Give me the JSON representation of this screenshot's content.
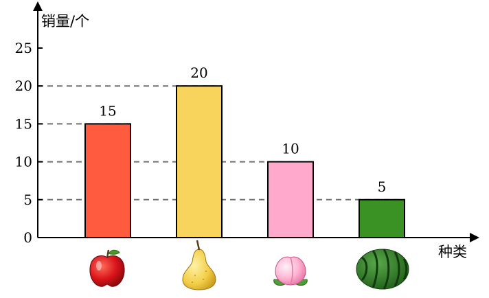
{
  "chart_data": {
    "type": "bar",
    "title": "",
    "ylabel": "销量/个",
    "xlabel": "种类",
    "categories": [
      "apple",
      "pear",
      "peach",
      "watermelon"
    ],
    "category_icons": [
      "apple-icon",
      "pear-icon",
      "peach-icon",
      "watermelon-icon"
    ],
    "values": [
      15,
      20,
      10,
      5
    ],
    "data_labels": [
      "15",
      "20",
      "10",
      "5"
    ],
    "colors": [
      "#FF5B3F",
      "#F9D45C",
      "#FFA9CC",
      "#3A9124"
    ],
    "ylim": [
      0,
      25
    ],
    "yticks": [
      0,
      5,
      10,
      15,
      20,
      25
    ],
    "ytick_labels": [
      "0",
      "5",
      "10",
      "15",
      "20",
      "25"
    ],
    "reference_lines": "dashed lines from y-axis to each bar top",
    "grid": false,
    "legend": "none"
  }
}
